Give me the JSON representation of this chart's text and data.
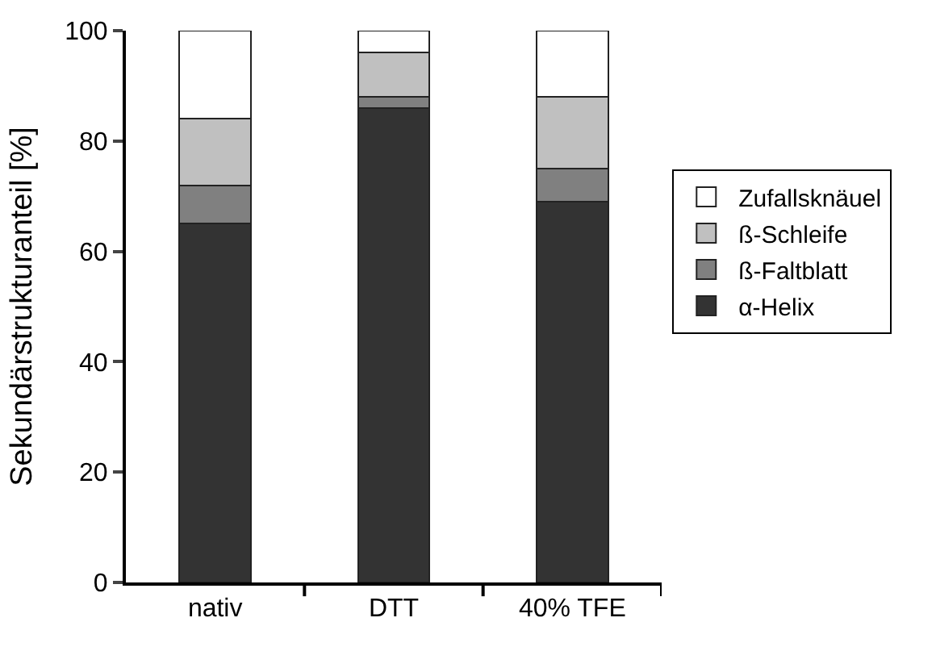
{
  "chart_data": {
    "type": "bar",
    "stacked": true,
    "ylabel": "Sekundärstrukturanteil [%]",
    "categories": [
      "nativ",
      "DTT",
      "40% TFE"
    ],
    "series": [
      {
        "name": "α-Helix",
        "color": "#333333",
        "values": [
          65,
          86,
          69
        ]
      },
      {
        "name": "ß-Faltblatt",
        "color": "#808080",
        "values": [
          7,
          2,
          6
        ]
      },
      {
        "name": "ß-Schleife",
        "color": "#c0c0c0",
        "values": [
          12,
          8,
          13
        ]
      },
      {
        "name": "Zufallsknäuel",
        "color": "#ffffff",
        "values": [
          16,
          4,
          12
        ]
      }
    ],
    "ylim": [
      0,
      100
    ],
    "yticks": [
      0,
      20,
      40,
      60,
      80,
      100
    ],
    "legend": "right"
  }
}
